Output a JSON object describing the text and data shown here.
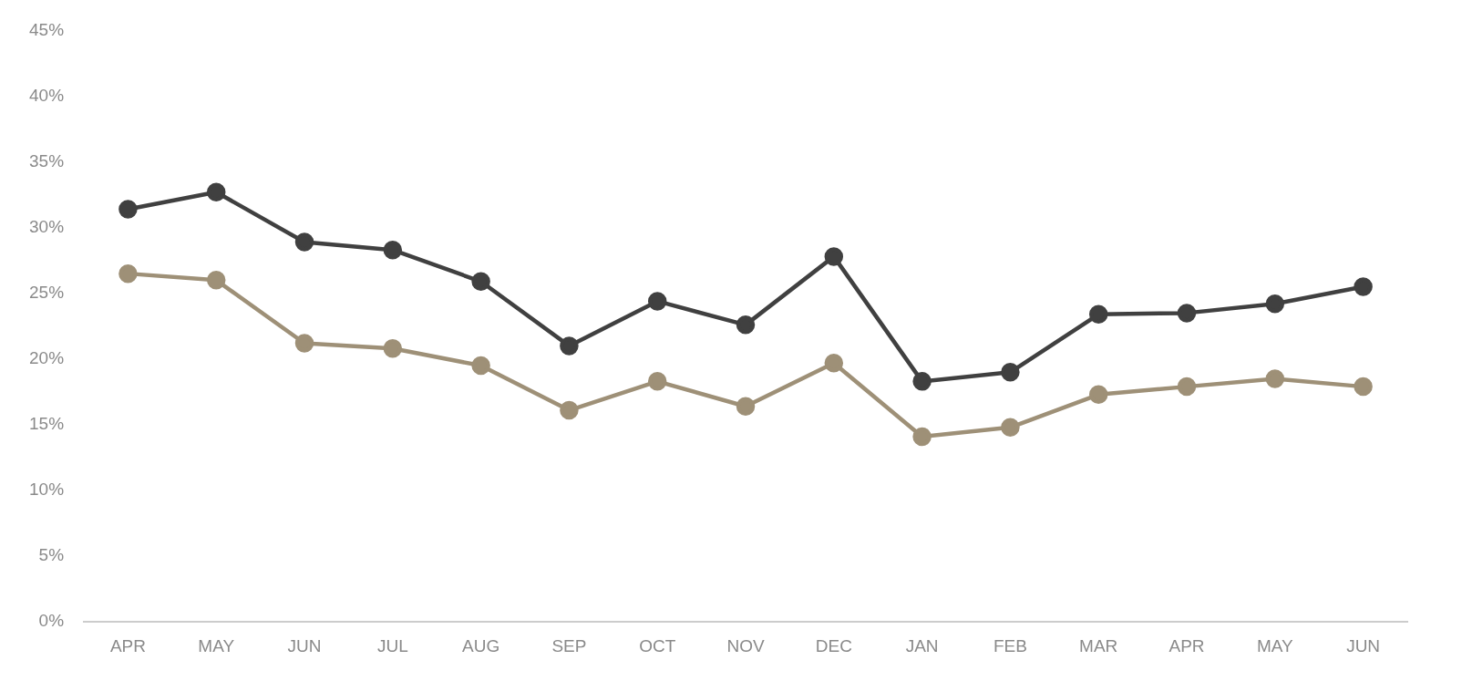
{
  "chart_data": {
    "type": "line",
    "categories": [
      "APR",
      "MAY",
      "JUN",
      "JUL",
      "AUG",
      "SEP",
      "OCT",
      "NOV",
      "DEC",
      "JAN",
      "FEB",
      "MAR",
      "APR",
      "MAY",
      "JUN"
    ],
    "series": [
      {
        "color": "#404040",
        "values": [
          31.4,
          32.7,
          28.9,
          28.3,
          25.9,
          21.0,
          24.4,
          22.6,
          27.8,
          18.3,
          19.0,
          23.4,
          23.5,
          24.2,
          25.5
        ]
      },
      {
        "color": "#9e9077",
        "values": [
          26.5,
          26.0,
          21.2,
          20.8,
          19.5,
          16.1,
          18.3,
          16.4,
          19.7,
          14.1,
          14.8,
          17.3,
          17.9,
          18.5,
          17.9
        ]
      }
    ],
    "ylim": [
      0,
      45
    ],
    "yticks": [
      {
        "value": 0,
        "label": "0%"
      },
      {
        "value": 5,
        "label": "5%"
      },
      {
        "value": 10,
        "label": "10%"
      },
      {
        "value": 15,
        "label": "15%"
      },
      {
        "value": 20,
        "label": "20%"
      },
      {
        "value": 25,
        "label": "25%"
      },
      {
        "value": 30,
        "label": "30%"
      },
      {
        "value": 35,
        "label": "35%"
      },
      {
        "value": 40,
        "label": "40%"
      },
      {
        "value": 45,
        "label": "45%"
      }
    ],
    "grid": false,
    "legend": false,
    "marker": "circle",
    "line_style": "solid"
  }
}
